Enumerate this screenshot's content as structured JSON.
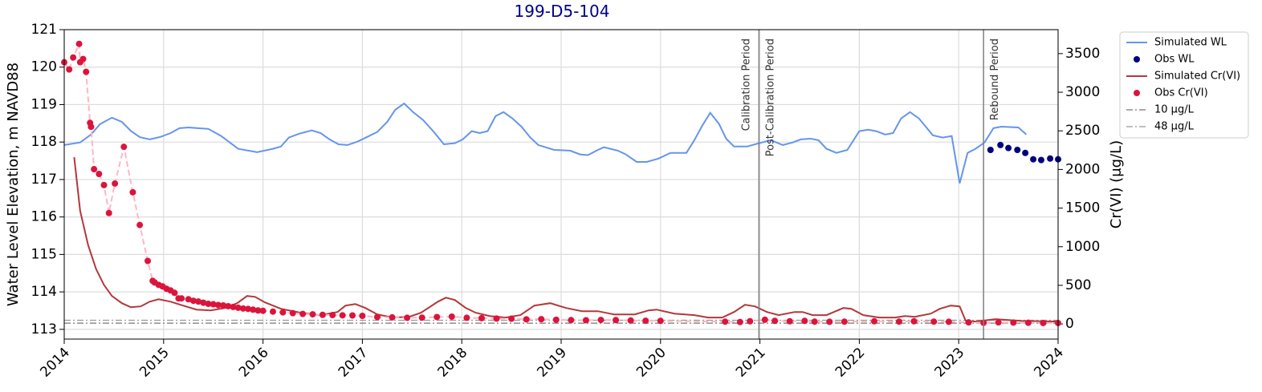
{
  "chart_data": {
    "type": "line",
    "title": "199-D5-104",
    "y_label": "Water Level Elevation, m NAVD88",
    "y2_label": "Cr(VI) (μg/L)",
    "xlim": [
      2014,
      2024
    ],
    "xticks": [
      2014,
      2015,
      2016,
      2017,
      2018,
      2019,
      2020,
      2021,
      2022,
      2023,
      2024
    ],
    "ylim": [
      112.74,
      121
    ],
    "yticks": [
      113,
      114,
      115,
      116,
      117,
      118,
      119,
      120,
      121
    ],
    "y2lim": [
      -196,
      3810
    ],
    "y2ticks": [
      0,
      500,
      1000,
      1500,
      2000,
      2500,
      3000,
      3500
    ],
    "grid": true,
    "legend": "outside upper right",
    "series": [
      {
        "name": "Simulated WL",
        "type": "line",
        "axis": "y",
        "color": "#6495ed",
        "x": [
          2014.0,
          2014.16,
          2014.27,
          2014.36,
          2014.48,
          2014.58,
          2014.67,
          2014.76,
          2014.86,
          2014.97,
          2015.07,
          2015.16,
          2015.25,
          2015.45,
          2015.58,
          2015.75,
          2015.94,
          2016.1,
          2016.18,
          2016.26,
          2016.36,
          2016.49,
          2016.58,
          2016.67,
          2016.76,
          2016.85,
          2016.95,
          2017.05,
          2017.15,
          2017.25,
          2017.33,
          2017.42,
          2017.51,
          2017.61,
          2017.72,
          2017.82,
          2017.93,
          2018.01,
          2018.1,
          2018.18,
          2018.26,
          2018.34,
          2018.42,
          2018.51,
          2018.6,
          2018.69,
          2018.77,
          2018.93,
          2019.09,
          2019.19,
          2019.27,
          2019.37,
          2019.43,
          2019.57,
          2019.65,
          2019.76,
          2019.86,
          2019.98,
          2020.1,
          2020.26,
          2020.34,
          2020.42,
          2020.5,
          2020.59,
          2020.66,
          2020.74,
          2020.87,
          2020.99,
          2021.11,
          2021.23,
          2021.33,
          2021.41,
          2021.51,
          2021.59,
          2021.67,
          2021.77,
          2021.88,
          2022.0,
          2022.09,
          2022.17,
          2022.26,
          2022.34,
          2022.42,
          2022.51,
          2022.6,
          2022.74,
          2022.84,
          2022.93,
          2023.01,
          2023.09,
          2023.17,
          2023.26,
          2023.35,
          2023.43,
          2023.6,
          2023.68
        ],
        "values": [
          117.92,
          117.99,
          118.2,
          118.48,
          118.65,
          118.54,
          118.3,
          118.13,
          118.07,
          118.14,
          118.24,
          118.37,
          118.39,
          118.35,
          118.16,
          117.82,
          117.73,
          117.82,
          117.88,
          118.12,
          118.22,
          118.31,
          118.24,
          118.07,
          117.94,
          117.92,
          118.01,
          118.14,
          118.27,
          118.54,
          118.86,
          119.03,
          118.8,
          118.59,
          118.27,
          117.94,
          117.97,
          118.07,
          118.29,
          118.24,
          118.29,
          118.69,
          118.8,
          118.63,
          118.41,
          118.12,
          117.92,
          117.79,
          117.77,
          117.67,
          117.65,
          117.79,
          117.86,
          117.77,
          117.67,
          117.47,
          117.47,
          117.56,
          117.71,
          117.71,
          118.05,
          118.44,
          118.78,
          118.48,
          118.09,
          117.88,
          117.88,
          117.97,
          118.05,
          117.92,
          117.99,
          118.07,
          118.09,
          118.05,
          117.82,
          117.71,
          117.79,
          118.29,
          118.33,
          118.29,
          118.2,
          118.24,
          118.63,
          118.8,
          118.63,
          118.18,
          118.12,
          118.16,
          116.9,
          117.71,
          117.82,
          117.99,
          118.37,
          118.41,
          118.39,
          118.2
        ]
      },
      {
        "name": "Obs WL",
        "type": "scatter",
        "axis": "y",
        "color": "#000080",
        "x": [
          2023.32,
          2023.42,
          2023.5,
          2023.59,
          2023.67,
          2023.75,
          2023.83,
          2023.92,
          2024.0
        ],
        "values": [
          117.79,
          117.92,
          117.84,
          117.79,
          117.71,
          117.54,
          117.52,
          117.56,
          117.54
        ]
      },
      {
        "name": "Simulated Cr(VI)",
        "type": "line",
        "axis": "y2",
        "color": "#b2383a",
        "x": [
          2014.1,
          2014.16,
          2014.24,
          2014.32,
          2014.4,
          2014.48,
          2014.58,
          2014.67,
          2014.77,
          2014.86,
          2014.95,
          2015.07,
          2015.17,
          2015.33,
          2015.47,
          2015.62,
          2015.74,
          2015.84,
          2015.92,
          2016.02,
          2016.18,
          2016.38,
          2016.58,
          2016.75,
          2016.83,
          2016.93,
          2017.03,
          2017.15,
          2017.31,
          2017.47,
          2017.59,
          2017.76,
          2017.84,
          2017.93,
          2018.04,
          2018.14,
          2018.28,
          2018.44,
          2018.59,
          2018.73,
          2018.89,
          2019.05,
          2019.21,
          2019.37,
          2019.53,
          2019.74,
          2019.88,
          2019.96,
          2020.14,
          2020.34,
          2020.48,
          2020.62,
          2020.74,
          2020.85,
          2020.95,
          2021.07,
          2021.19,
          2021.35,
          2021.43,
          2021.53,
          2021.67,
          2021.84,
          2021.92,
          2022.04,
          2022.2,
          2022.36,
          2022.46,
          2022.56,
          2022.72,
          2022.81,
          2022.92,
          2023.01,
          2023.07,
          2023.17,
          2023.37,
          2023.62,
          2024.0
        ],
        "values": [
          2159,
          1467,
          1023,
          713,
          506,
          362,
          269,
          217,
          227,
          289,
          320,
          289,
          248,
          186,
          176,
          207,
          269,
          362,
          351,
          279,
          196,
          145,
          114,
          155,
          238,
          258,
          207,
          124,
          83,
          93,
          145,
          289,
          341,
          310,
          207,
          145,
          103,
          83,
          114,
          238,
          269,
          207,
          165,
          165,
          124,
          124,
          176,
          186,
          134,
          114,
          83,
          83,
          155,
          248,
          227,
          155,
          114,
          155,
          155,
          114,
          114,
          207,
          196,
          114,
          83,
          83,
          103,
          93,
          134,
          196,
          238,
          227,
          41,
          31,
          62,
          41,
          31
        ]
      },
      {
        "name": "Obs Cr(VI)",
        "type": "scatter",
        "axis": "y2",
        "color": "#dc143c",
        "line_color": "#ffb6c1",
        "x": [
          2014.0,
          2014.05,
          2014.09,
          2014.15,
          2014.16,
          2014.19,
          2014.22,
          2014.26,
          2014.27,
          2014.3,
          2014.35,
          2014.4,
          2014.45,
          2014.51,
          2014.6,
          2014.69,
          2014.76,
          2014.84,
          2014.89,
          2014.91,
          2014.95,
          2014.99,
          2015.03,
          2015.07,
          2015.11,
          2015.15,
          2015.18,
          2015.25,
          2015.3,
          2015.35,
          2015.4,
          2015.45,
          2015.5,
          2015.55,
          2015.6,
          2015.65,
          2015.7,
          2015.75,
          2015.8,
          2015.85,
          2015.9,
          2015.95,
          2016.0,
          2016.1,
          2016.2,
          2016.3,
          2016.4,
          2016.5,
          2016.6,
          2016.7,
          2016.8,
          2016.9,
          2017.0,
          2017.15,
          2017.3,
          2017.45,
          2017.6,
          2017.75,
          2017.9,
          2018.05,
          2018.2,
          2018.35,
          2018.5,
          2018.65,
          2018.8,
          2018.95,
          2019.1,
          2019.25,
          2019.4,
          2019.55,
          2019.7,
          2019.85,
          2020.0,
          2020.65,
          2020.8,
          2020.9,
          2021.05,
          2021.15,
          2021.3,
          2021.45,
          2021.55,
          2021.7,
          2021.85,
          2022.15,
          2022.4,
          2022.55,
          2022.75,
          2022.9,
          2023.1,
          2023.25,
          2023.4,
          2023.55,
          2023.7,
          2023.85,
          2024.0
        ],
        "values": [
          3388,
          3295,
          3450,
          3626,
          3388,
          3430,
          3264,
          2603,
          2552,
          2004,
          1942,
          1798,
          1436,
          1818,
          2293,
          1705,
          1281,
          816,
          558,
          537,
          506,
          486,
          455,
          434,
          403,
          331,
          331,
          320,
          300,
          290,
          275,
          260,
          255,
          245,
          240,
          230,
          220,
          210,
          200,
          195,
          185,
          175,
          170,
          160,
          150,
          140,
          130,
          125,
          118,
          115,
          112,
          110,
          105,
          90,
          85,
          80,
          82,
          90,
          95,
          80,
          75,
          70,
          68,
          60,
          62,
          55,
          50,
          48,
          52,
          50,
          45,
          42,
          40,
          30,
          25,
          35,
          55,
          40,
          35,
          40,
          30,
          28,
          30,
          35,
          30,
          35,
          30,
          28,
          20,
          15,
          20,
          18,
          15,
          12,
          12
        ]
      }
    ],
    "reference_lines": [
      {
        "name": "10 μg/L",
        "value": 10,
        "axis": "y2",
        "color": "#777777"
      },
      {
        "name": "48 μg/L",
        "value": 48,
        "axis": "y2",
        "color": "#999999"
      }
    ],
    "vlines": [
      {
        "x": 2020.99,
        "color": "#808080"
      },
      {
        "x": 2023.25,
        "color": "#808080"
      }
    ],
    "annotations": [
      {
        "text": "Calibration Period",
        "x": 2020.99,
        "side": "left"
      },
      {
        "text": "Post-Calibration Period",
        "x": 2020.99,
        "side": "right"
      },
      {
        "text": "Rebound Period",
        "x": 2023.25,
        "side": "right"
      }
    ]
  }
}
